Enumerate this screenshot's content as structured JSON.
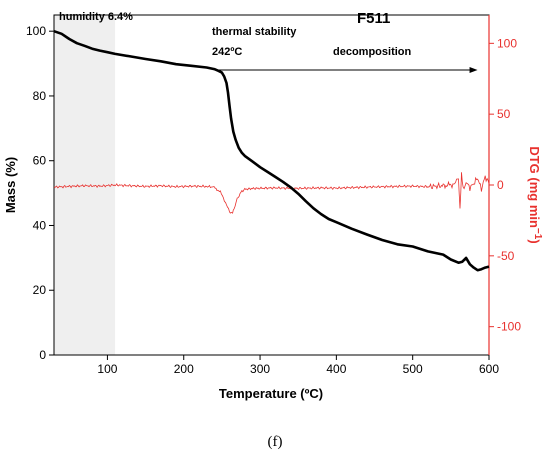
{
  "chart_data": {
    "type": "line",
    "title": "F511",
    "xlabel": "Temperature (ºC)",
    "ylabel_left": "Mass (%)",
    "ylabel_right_base": "DTG (mg min",
    "ylabel_right_exp": "−1",
    "ylabel_right_close": ")",
    "xlim": [
      30,
      600
    ],
    "ylim_left": [
      0,
      105
    ],
    "ylim_right": [
      -120,
      120
    ],
    "x_ticks": [
      100,
      200,
      300,
      400,
      500,
      600
    ],
    "y_left_ticks": [
      0,
      20,
      40,
      60,
      80,
      100
    ],
    "y_right_ticks": [
      -100,
      -50,
      0,
      50,
      100
    ],
    "grid": false,
    "colors": {
      "mass": "#000000",
      "dtg": "#e8312e",
      "humidity_region": "#efefef"
    },
    "shaded_region": {
      "label": "humidity 6.4%",
      "x_range": [
        30,
        110
      ]
    },
    "annotations": {
      "thermal_stability": "thermal stability",
      "temperature": "242ºC",
      "decomposition": "decomposition",
      "arrow_x_range": [
        242,
        585
      ],
      "arrow_y": 88
    },
    "series": [
      {
        "name": "Mass (%)",
        "axis": "left",
        "x": [
          30,
          40,
          50,
          60,
          70,
          80,
          90,
          100,
          110,
          130,
          150,
          170,
          190,
          210,
          230,
          240,
          245,
          250,
          253,
          256,
          258,
          260,
          262,
          265,
          268,
          272,
          276,
          280,
          290,
          300,
          310,
          320,
          330,
          340,
          350,
          360,
          370,
          380,
          390,
          400,
          420,
          440,
          460,
          480,
          500,
          520,
          540,
          550,
          560,
          565,
          570,
          575,
          580,
          585,
          590,
          595,
          600
        ],
        "y": [
          100,
          99.2,
          97.6,
          96.3,
          95.5,
          94.6,
          94.0,
          93.5,
          93.0,
          92.2,
          91.4,
          90.7,
          89.8,
          89.3,
          88.8,
          88.3,
          87.8,
          87.2,
          86.0,
          84.0,
          81.0,
          77.0,
          73.0,
          69.0,
          66.5,
          64.0,
          62.5,
          61.5,
          59.8,
          58.0,
          56.5,
          55.0,
          53.5,
          51.8,
          49.8,
          47.5,
          45.3,
          43.5,
          42.0,
          41.0,
          39.0,
          37.2,
          35.5,
          34.2,
          33.5,
          32.0,
          31.0,
          29.5,
          28.5,
          28.8,
          30.0,
          28.0,
          27.0,
          26.2,
          26.5,
          27.0,
          27.3
        ]
      },
      {
        "name": "DTG (mg min⁻¹)",
        "axis": "right",
        "x": [
          30,
          50,
          70,
          90,
          110,
          130,
          150,
          170,
          190,
          210,
          230,
          240,
          248,
          252,
          256,
          260,
          263,
          266,
          270,
          275,
          280,
          290,
          300,
          320,
          340,
          360,
          380,
          400,
          420,
          440,
          460,
          480,
          500,
          520,
          540,
          555,
          560,
          562,
          564,
          566,
          570,
          575,
          580,
          585,
          590,
          595,
          600
        ],
        "y": [
          -1.5,
          -1.0,
          -0.5,
          -0.8,
          0,
          -0.5,
          -1.0,
          -0.5,
          -1.2,
          -0.8,
          -1.0,
          -1.5,
          -5,
          -9,
          -14,
          -19,
          -20,
          -17,
          -10,
          -5,
          -3,
          -2.5,
          -2.3,
          -2.0,
          -2.4,
          -2.3,
          -2.0,
          -2.2,
          -1.8,
          -1.5,
          -1.2,
          -1.0,
          -0.8,
          -1.2,
          -0.5,
          0.5,
          6,
          -18,
          9,
          -3,
          2,
          -2,
          1,
          5,
          -3,
          6,
          1
        ]
      }
    ]
  },
  "caption": "(f)"
}
